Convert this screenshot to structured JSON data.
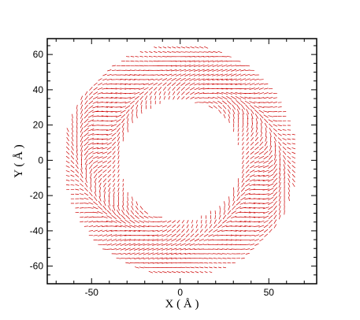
{
  "chart_data": {
    "type": "quiver",
    "title": "",
    "xlabel": "X ( Å )",
    "ylabel": "Y ( Å )",
    "xlim": [
      -75,
      77
    ],
    "ylim": [
      -70,
      69
    ],
    "xticks": [
      -50,
      0,
      50
    ],
    "yticks": [
      -60,
      -40,
      -20,
      0,
      20,
      40,
      60
    ],
    "x_tick_labels": [
      "-50",
      "0",
      "50"
    ],
    "y_tick_labels": [
      "-60",
      "-40",
      "-20",
      "0",
      "20",
      "40",
      "60"
    ],
    "grid": false,
    "legend": "none",
    "field": {
      "inner_radius": 34,
      "outer_radius": 66,
      "grid_spacing": 2.6,
      "vector_color": "#cc0000"
    }
  }
}
